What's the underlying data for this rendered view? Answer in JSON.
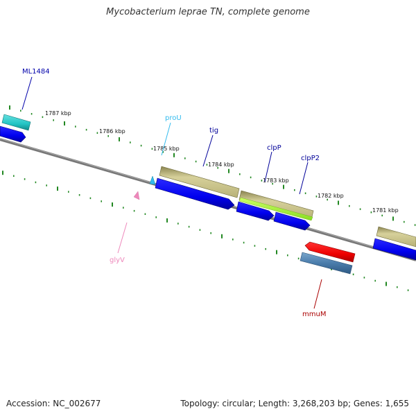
{
  "title": "Mycobacterium leprae TN, complete genome",
  "footer": {
    "accession": "Accession: NC_002677",
    "summary": "Topology: circular; Length: 3,268,203 bp; Genes: 1,655"
  },
  "ruler_labels": [
    "1787 kbp",
    "1786 kbp",
    "1785 kbp",
    "1784 kbp",
    "1783 kbp",
    "1782 kbp",
    "1781 kbp"
  ],
  "gene_labels": {
    "ml1484": "ML1484",
    "prou": "proU",
    "tig": "tig",
    "clpp": "clpP",
    "clpp2": "clpP2",
    "glyv": "glyV",
    "mmum": "mmuM"
  },
  "colors": {
    "ml1484": "#0000aa",
    "prou": "#33bbee",
    "tig": "#000099",
    "clpp": "#000099",
    "clpp2": "#000099",
    "glyv": "#ee88bb",
    "mmum": "#aa0000",
    "tick": "#228822",
    "backbone": "#777777"
  }
}
